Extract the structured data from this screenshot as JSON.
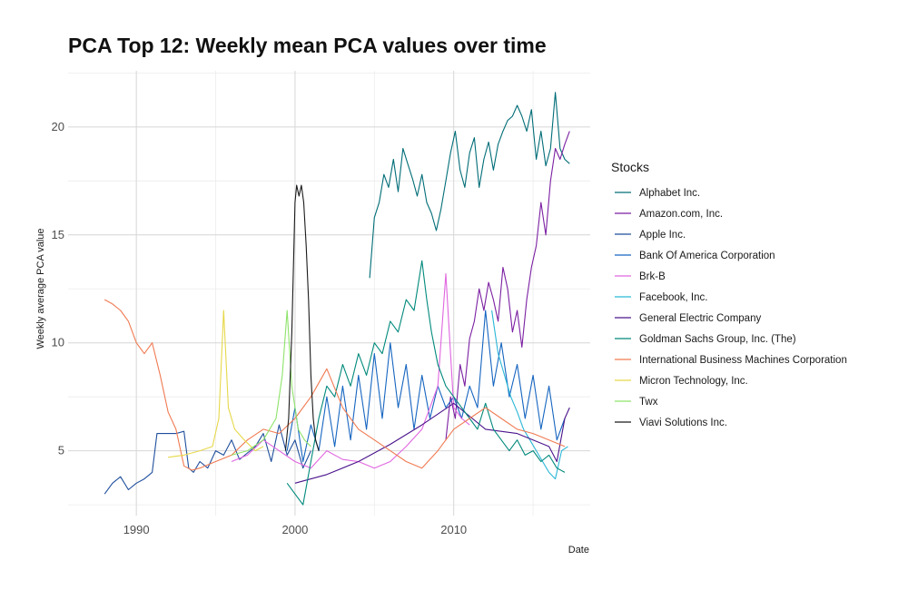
{
  "chart_data": {
    "type": "line",
    "title": "PCA Top 12: Weekly mean PCA values over time",
    "xlabel": "Date",
    "ylabel": "Weekly average PCA value",
    "xlim": [
      1985.7,
      2018.6
    ],
    "ylim": [
      2.0,
      22.6
    ],
    "x_ticks": [
      1990,
      2000,
      2010
    ],
    "y_ticks": [
      5,
      10,
      15,
      20
    ],
    "grid": true,
    "legend": {
      "title": "Stocks",
      "position": "right"
    },
    "series": [
      {
        "name": "Alphabet Inc.",
        "color": "#006d77",
        "x": [
          2004.7,
          2005.0,
          2005.3,
          2005.6,
          2005.9,
          2006.2,
          2006.5,
          2006.8,
          2007.1,
          2007.4,
          2007.7,
          2008.0,
          2008.3,
          2008.6,
          2008.9,
          2009.2,
          2009.5,
          2009.8,
          2010.1,
          2010.4,
          2010.7,
          2011.0,
          2011.3,
          2011.6,
          2011.9,
          2012.2,
          2012.5,
          2012.8,
          2013.1,
          2013.4,
          2013.7,
          2014.0,
          2014.3,
          2014.6,
          2014.9,
          2015.2,
          2015.5,
          2015.8,
          2016.1,
          2016.4,
          2016.7,
          2017.0,
          2017.3
        ],
        "y": [
          13.0,
          15.8,
          16.5,
          17.8,
          17.2,
          18.5,
          17.0,
          19.0,
          18.3,
          17.6,
          16.8,
          17.8,
          16.5,
          16.0,
          15.2,
          16.2,
          17.5,
          18.8,
          19.8,
          18.0,
          17.2,
          18.8,
          19.5,
          17.2,
          18.5,
          19.3,
          18.0,
          19.2,
          19.8,
          20.3,
          20.5,
          21.0,
          20.5,
          19.8,
          20.8,
          18.5,
          19.8,
          18.2,
          19.0,
          21.6,
          19.0,
          18.5,
          18.3
        ]
      },
      {
        "name": "Amazon.com, Inc.",
        "color": "#7b1fa2",
        "x": [
          2009.5,
          2009.8,
          2010.1,
          2010.4,
          2010.7,
          2011.0,
          2011.3,
          2011.6,
          2011.9,
          2012.2,
          2012.5,
          2012.8,
          2013.1,
          2013.4,
          2013.7,
          2014.0,
          2014.3,
          2014.6,
          2014.9,
          2015.2,
          2015.5,
          2015.8,
          2016.1,
          2016.4,
          2016.7,
          2017.0,
          2017.3
        ],
        "y": [
          5.5,
          7.5,
          6.5,
          9.0,
          8.0,
          10.2,
          11.0,
          12.5,
          11.5,
          12.8,
          12.0,
          11.0,
          13.5,
          12.5,
          10.5,
          11.5,
          9.8,
          12.0,
          13.5,
          14.5,
          16.5,
          15.0,
          17.5,
          19.0,
          18.5,
          19.2,
          19.8
        ]
      },
      {
        "name": "Apple Inc.",
        "color": "#1f4e9c",
        "x": [
          1988.0,
          1988.5,
          1989.0,
          1989.5,
          1990.0,
          1990.5,
          1991.0,
          1991.3,
          1991.5,
          1992.0,
          1992.5,
          1993.0,
          1993.3,
          1993.6,
          1994.0,
          1994.5,
          1995.0,
          1995.5,
          1996.0,
          1996.5,
          1997.0,
          1997.5,
          1998.0,
          1998.5,
          1999.0,
          1999.5,
          2000.0,
          2000.5,
          2001.0
        ],
        "y": [
          3.0,
          3.5,
          3.8,
          3.2,
          3.5,
          3.7,
          4.0,
          5.8,
          5.8,
          5.8,
          5.8,
          5.9,
          4.2,
          4.0,
          4.5,
          4.2,
          5.0,
          4.8,
          5.5,
          4.6,
          4.9,
          5.2,
          5.8,
          4.5,
          6.2,
          4.8,
          5.5,
          4.2,
          5.0
        ]
      },
      {
        "name": "Bank Of America Corporation",
        "color": "#1565c0",
        "x": [
          1999.5,
          2000.0,
          2000.5,
          2001.0,
          2001.5,
          2002.0,
          2002.5,
          2003.0,
          2003.5,
          2004.0,
          2004.5,
          2005.0,
          2005.5,
          2006.0,
          2006.5,
          2007.0,
          2007.5,
          2008.0,
          2008.5,
          2009.0,
          2009.5,
          2010.0,
          2010.5,
          2011.0,
          2011.5,
          2012.0,
          2012.5,
          2013.0,
          2013.5,
          2014.0,
          2014.5,
          2015.0,
          2015.5,
          2016.0,
          2016.5,
          2017.0
        ],
        "y": [
          5.0,
          7.0,
          4.5,
          6.2,
          5.0,
          7.5,
          5.2,
          8.0,
          5.5,
          8.5,
          6.0,
          9.5,
          6.5,
          10.0,
          7.0,
          9.0,
          6.0,
          8.5,
          6.5,
          8.0,
          7.0,
          7.5,
          6.5,
          8.0,
          7.0,
          11.5,
          8.0,
          10.0,
          7.5,
          9.0,
          6.5,
          8.5,
          6.0,
          8.0,
          5.5,
          6.5
        ]
      },
      {
        "name": "Brk-B",
        "color": "#e066e0",
        "x": [
          1996.0,
          1997.0,
          1998.0,
          1999.0,
          2000.0,
          2001.0,
          2002.0,
          2003.0,
          2004.0,
          2005.0,
          2006.0,
          2007.0,
          2008.0,
          2009.0,
          2009.5,
          2010.0,
          2010.5,
          2011.0
        ],
        "y": [
          4.5,
          4.8,
          5.5,
          5.0,
          4.5,
          4.2,
          5.0,
          4.6,
          4.5,
          4.2,
          4.5,
          5.2,
          6.0,
          8.0,
          13.2,
          7.0,
          6.5,
          6.2
        ]
      },
      {
        "name": "Facebook, Inc.",
        "color": "#29b6d6",
        "x": [
          2012.4,
          2012.8,
          2013.2,
          2013.6,
          2014.0,
          2014.4,
          2014.8,
          2015.2,
          2015.6,
          2016.0,
          2016.4,
          2016.8,
          2017.2
        ],
        "y": [
          11.5,
          9.5,
          8.5,
          7.5,
          6.8,
          6.0,
          5.5,
          5.0,
          4.5,
          4.0,
          3.7,
          5.0,
          5.2
        ]
      },
      {
        "name": "General Electric Company",
        "color": "#4a148c",
        "x": [
          2000.0,
          2002.0,
          2004.0,
          2006.0,
          2008.0,
          2010.0,
          2012.0,
          2014.0,
          2016.0,
          2016.5,
          2017.0,
          2017.3
        ],
        "y": [
          3.5,
          3.9,
          4.5,
          5.3,
          6.2,
          7.2,
          6.0,
          5.8,
          5.2,
          4.5,
          6.5,
          7.0
        ]
      },
      {
        "name": "Goldman Sachs Group, Inc. (The)",
        "color": "#00897b",
        "x": [
          1999.5,
          2000.0,
          2000.5,
          2001.0,
          2001.5,
          2002.0,
          2002.5,
          2003.0,
          2003.5,
          2004.0,
          2004.5,
          2005.0,
          2005.5,
          2006.0,
          2006.5,
          2007.0,
          2007.5,
          2008.0,
          2008.3,
          2008.6,
          2009.0,
          2009.5,
          2010.0,
          2010.5,
          2011.0,
          2011.5,
          2012.0,
          2012.5,
          2013.0,
          2013.5,
          2014.0,
          2014.5,
          2015.0,
          2015.5,
          2016.0,
          2016.5,
          2017.0
        ],
        "y": [
          3.5,
          3.0,
          2.5,
          4.5,
          6.5,
          8.0,
          7.5,
          9.0,
          8.0,
          9.5,
          8.5,
          10.0,
          9.5,
          11.0,
          10.5,
          12.0,
          11.5,
          13.8,
          12.0,
          10.5,
          9.0,
          8.0,
          7.5,
          7.0,
          6.5,
          6.0,
          7.2,
          6.0,
          5.5,
          5.0,
          5.5,
          4.8,
          5.0,
          4.5,
          4.8,
          4.2,
          4.0
        ]
      },
      {
        "name": "International Business Machines Corporation",
        "color": "#f07a52",
        "x": [
          1988.0,
          1988.5,
          1989.0,
          1989.5,
          1990.0,
          1990.5,
          1991.0,
          1991.5,
          1992.0,
          1992.5,
          1993.0,
          1993.5,
          1994.0,
          1995.0,
          1996.0,
          1997.0,
          1998.0,
          1999.0,
          2000.0,
          2001.0,
          2002.0,
          2003.0,
          2004.0,
          2005.0,
          2006.0,
          2007.0,
          2008.0,
          2009.0,
          2010.0,
          2011.0,
          2012.0,
          2013.0,
          2014.0,
          2015.0,
          2016.0,
          2017.0
        ],
        "y": [
          12.0,
          11.8,
          11.5,
          11.0,
          10.0,
          9.5,
          10.0,
          8.5,
          6.8,
          6.0,
          4.3,
          4.1,
          4.2,
          4.5,
          4.8,
          5.5,
          6.0,
          5.8,
          6.5,
          7.5,
          8.8,
          7.0,
          6.0,
          5.5,
          5.0,
          4.5,
          4.2,
          5.0,
          6.0,
          6.5,
          7.0,
          6.5,
          6.0,
          5.8,
          5.5,
          5.2
        ]
      },
      {
        "name": "Micron Technology, Inc.",
        "color": "#e6d84a",
        "x": [
          1992.0,
          1993.0,
          1994.0,
          1994.8,
          1995.2,
          1995.5,
          1995.8,
          1996.2,
          1996.8,
          1997.5,
          1998.0
        ],
        "y": [
          4.7,
          4.8,
          5.0,
          5.2,
          6.5,
          11.5,
          7.0,
          6.0,
          5.5,
          5.0,
          5.2
        ]
      },
      {
        "name": "Twx",
        "color": "#8ee36a",
        "x": [
          1996.0,
          1997.0,
          1998.0,
          1998.8,
          1999.2,
          1999.5,
          1999.8,
          2000.2,
          2000.6,
          2001.0
        ],
        "y": [
          4.8,
          5.0,
          5.5,
          6.5,
          8.5,
          11.5,
          8.0,
          6.0,
          5.5,
          5.2
        ]
      },
      {
        "name": "Viavi Solutions Inc.",
        "color": "#1a1a1a",
        "x": [
          1999.4,
          1999.6,
          1999.8,
          2000.0,
          2000.1,
          2000.25,
          2000.4,
          2000.55,
          2000.7,
          2000.85,
          2001.0,
          2001.15,
          2001.3,
          2001.5
        ],
        "y": [
          5.0,
          6.5,
          10.5,
          16.5,
          17.3,
          16.8,
          17.3,
          16.5,
          14.5,
          12.0,
          8.5,
          6.5,
          5.5,
          5.0
        ]
      }
    ]
  }
}
